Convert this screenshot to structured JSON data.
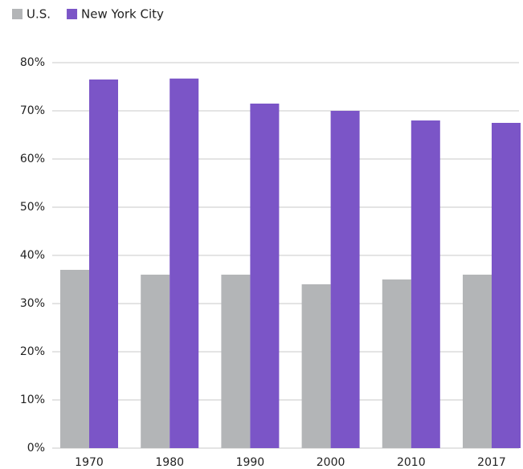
{
  "chart_data": {
    "type": "bar",
    "categories": [
      "1970",
      "1980",
      "1990",
      "2000",
      "2010",
      "2017"
    ],
    "series": [
      {
        "name": "U.S.",
        "color": "#b3b5b7",
        "values": [
          37,
          36,
          36,
          34,
          35,
          36
        ]
      },
      {
        "name": "New York City",
        "color": "#7b55c7",
        "values": [
          76.5,
          76.7,
          71.5,
          70,
          68,
          67.5
        ]
      }
    ],
    "ylim": [
      0,
      80
    ],
    "yticks": [
      {
        "value": 0,
        "label": "0%"
      },
      {
        "value": 10,
        "label": "10%"
      },
      {
        "value": 20,
        "label": "20%"
      },
      {
        "value": 30,
        "label": "30%"
      },
      {
        "value": 40,
        "label": "40%"
      },
      {
        "value": 50,
        "label": "50%"
      },
      {
        "value": 60,
        "label": "60%"
      },
      {
        "value": 70,
        "label": "70%"
      },
      {
        "value": 80,
        "label": "80%"
      }
    ],
    "grid": true,
    "legend": "top-left"
  }
}
